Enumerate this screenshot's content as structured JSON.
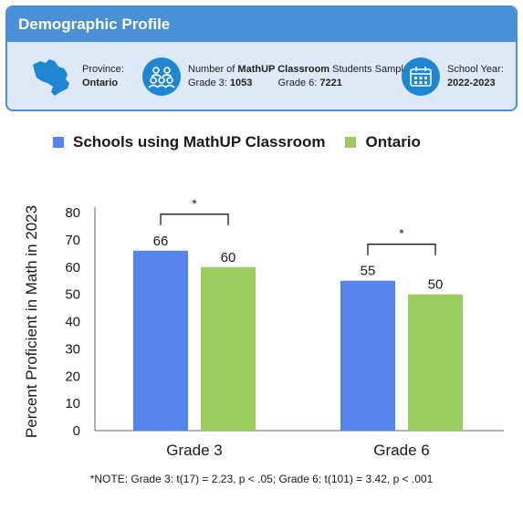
{
  "profile": {
    "title": "Demographic Profile",
    "province_label": "Province:",
    "province_value": "Ontario",
    "students_label_prefix": "Number of ",
    "students_label_program": "MathUP Classroom",
    "students_label_suffix": " Students Sampled",
    "grade3_label": "Grade 3:",
    "grade3_value": "1053",
    "grade6_label": "Grade 6:",
    "grade6_value": "7221",
    "year_label": "School Year:",
    "year_value": "2022-2023",
    "icons": [
      "ontario-map-icon",
      "students-group-icon",
      "calendar-icon"
    ],
    "colors": {
      "header": "#4a90d6",
      "panel": "#dde9f6",
      "icon_circle": "#1f86d2"
    }
  },
  "chart_data": {
    "type": "bar",
    "categories": [
      "Grade 3",
      "Grade 6"
    ],
    "series": [
      {
        "name": "Schools using MathUP Classroom",
        "values": [
          66,
          55
        ],
        "color": "#5584ec"
      },
      {
        "name": "Ontario",
        "values": [
          60,
          50
        ],
        "color": "#9bcc5f"
      }
    ],
    "ylabel": "Percent Proficient in Math in 2023",
    "ylim": [
      0,
      80
    ],
    "yticks": [
      0,
      10,
      20,
      30,
      40,
      50,
      60,
      70,
      80
    ],
    "significance": [
      "*",
      "*"
    ],
    "grid": false,
    "legend": "top"
  },
  "note": "*NOTE: Grade 3: t(17) = 2.23, p < .05; Grade 6: t(101) = 3.42, p < .001"
}
